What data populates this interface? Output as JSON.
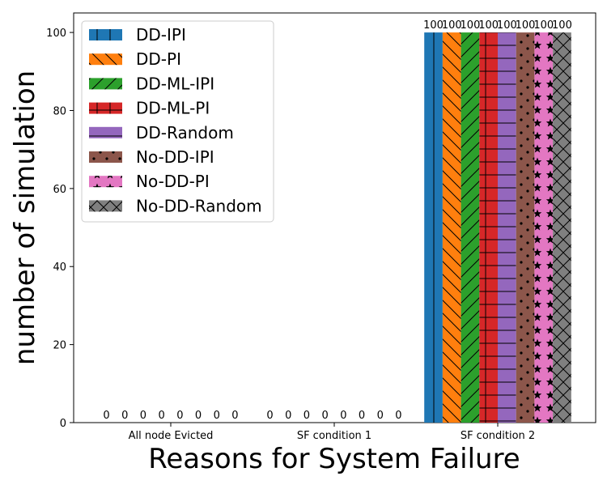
{
  "chart_data": {
    "type": "bar",
    "categories": [
      "All node Evicted",
      "SF condition 1",
      "SF condition 2"
    ],
    "xlabel": "Reasons for System Failure",
    "ylabel": "number of simulation",
    "ylim": [
      0,
      105
    ],
    "yticks": [
      0,
      20,
      40,
      60,
      80,
      100
    ],
    "grid": false,
    "legend_position": "top-left",
    "series": [
      {
        "name": "DD-IPI",
        "values": [
          0,
          0,
          100
        ],
        "color": "#1f77b4",
        "hatch": "vertical-lines"
      },
      {
        "name": "DD-PI",
        "values": [
          0,
          0,
          100
        ],
        "color": "#ff7f0e",
        "hatch": "backslash"
      },
      {
        "name": "DD-ML-IPI",
        "values": [
          0,
          0,
          100
        ],
        "color": "#2ca02c",
        "hatch": "slash"
      },
      {
        "name": "DD-ML-PI",
        "values": [
          0,
          0,
          100
        ],
        "color": "#d62728",
        "hatch": "plus-grid"
      },
      {
        "name": "DD-Random",
        "values": [
          0,
          0,
          100
        ],
        "color": "#9467bd",
        "hatch": "horizontal-lines"
      },
      {
        "name": "No-DD-IPI",
        "values": [
          0,
          0,
          100
        ],
        "color": "#8c564b",
        "hatch": "dots"
      },
      {
        "name": "No-DD-PI",
        "values": [
          0,
          0,
          100
        ],
        "color": "#e377c2",
        "hatch": "stars"
      },
      {
        "name": "No-DD-Random",
        "values": [
          0,
          0,
          100
        ],
        "color": "#7f7f7f",
        "hatch": "cross"
      }
    ]
  }
}
